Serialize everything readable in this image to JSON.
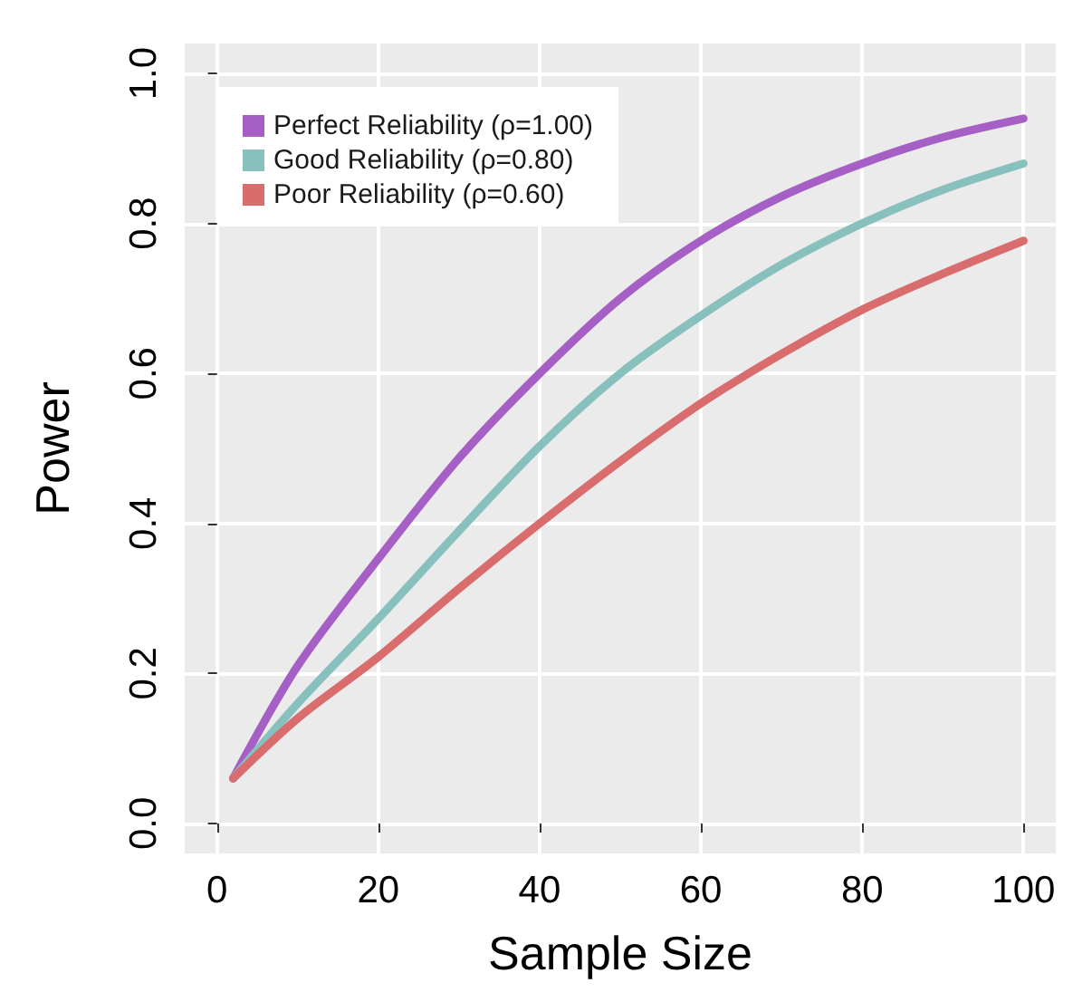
{
  "chart_data": {
    "type": "line",
    "xlabel": "Sample Size",
    "ylabel": "Power",
    "x": [
      2,
      10,
      20,
      30,
      40,
      50,
      60,
      70,
      80,
      90,
      100
    ],
    "series": [
      {
        "name": "Perfect Reliability (ρ=1.00)",
        "color": "#a65fc4",
        "values": [
          0.06,
          0.21,
          0.353,
          0.487,
          0.6,
          0.7,
          0.777,
          0.836,
          0.88,
          0.915,
          0.94
        ]
      },
      {
        "name": "Good Reliability (ρ=0.80)",
        "color": "#88c0bd",
        "values": [
          0.06,
          0.16,
          0.273,
          0.39,
          0.503,
          0.6,
          0.677,
          0.745,
          0.8,
          0.845,
          0.88
        ]
      },
      {
        "name": "Poor Reliability (ρ=0.60)",
        "color": "#d96c6c",
        "values": [
          0.06,
          0.14,
          0.222,
          0.313,
          0.4,
          0.483,
          0.56,
          0.626,
          0.685,
          0.733,
          0.777
        ]
      }
    ],
    "xlim": [
      -4,
      104
    ],
    "xticks": [
      0,
      20,
      40,
      60,
      80,
      100
    ],
    "ylim": [
      -0.04,
      1.04
    ],
    "yticks": [
      {
        "value": 0,
        "label": "0.0"
      },
      0.2,
      0.4,
      0.6,
      0.8,
      {
        "value": 1,
        "label": "1.0"
      }
    ],
    "grid": true,
    "legend": "top left",
    "marker": "none",
    "line_style": "solid"
  }
}
